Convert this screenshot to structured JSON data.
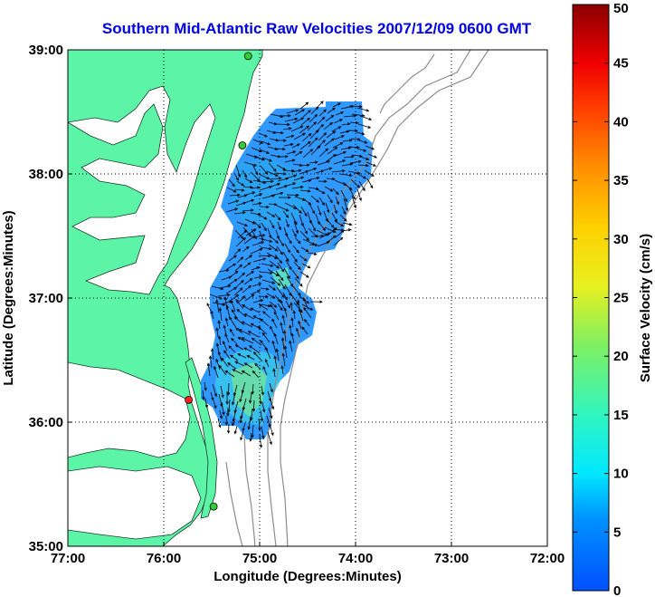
{
  "title": "Southern Mid-Atlantic Raw Velocities 2007/12/09 0600 GMT",
  "map": {
    "xlabel": "Longitude (Degrees:Minutes)",
    "ylabel": "Latitude (Degrees:Minutes)",
    "lon_ticks": [
      {
        "value": -77,
        "label": "77:00"
      },
      {
        "value": -76,
        "label": "76:00"
      },
      {
        "value": -75,
        "label": "75:00"
      },
      {
        "value": -74,
        "label": "74:00"
      },
      {
        "value": -73,
        "label": "73:00"
      },
      {
        "value": -72,
        "label": "72:00"
      }
    ],
    "lat_ticks": [
      {
        "value": 39,
        "label": "39:00"
      },
      {
        "value": 38,
        "label": "38:00"
      },
      {
        "value": 37,
        "label": "37:00"
      },
      {
        "value": 36,
        "label": "36:00"
      },
      {
        "value": 35,
        "label": "35:00"
      }
    ],
    "lon_range": [
      -77,
      -72
    ],
    "lat_range": [
      35,
      39
    ],
    "grid": "dotted",
    "land_color": "#5cf5a8",
    "velocity_field_colors": [
      "#1e90ff",
      "#2aa6f5",
      "#3cc8e8",
      "#6fe0a0"
    ],
    "stations": [
      {
        "lon": -75.12,
        "lat": 38.95,
        "color": "#32cd32"
      },
      {
        "lon": -75.18,
        "lat": 38.23,
        "color": "#32cd32"
      },
      {
        "lon": -75.74,
        "lat": 36.18,
        "color": "#ff2020"
      },
      {
        "lon": -75.48,
        "lat": 35.32,
        "color": "#32cd32"
      }
    ]
  },
  "colorbar": {
    "label": "Surface Velocity (cm/s)",
    "min": 0,
    "max": 50,
    "ticks": [
      0,
      5,
      10,
      15,
      20,
      25,
      30,
      35,
      40,
      45,
      50
    ]
  }
}
